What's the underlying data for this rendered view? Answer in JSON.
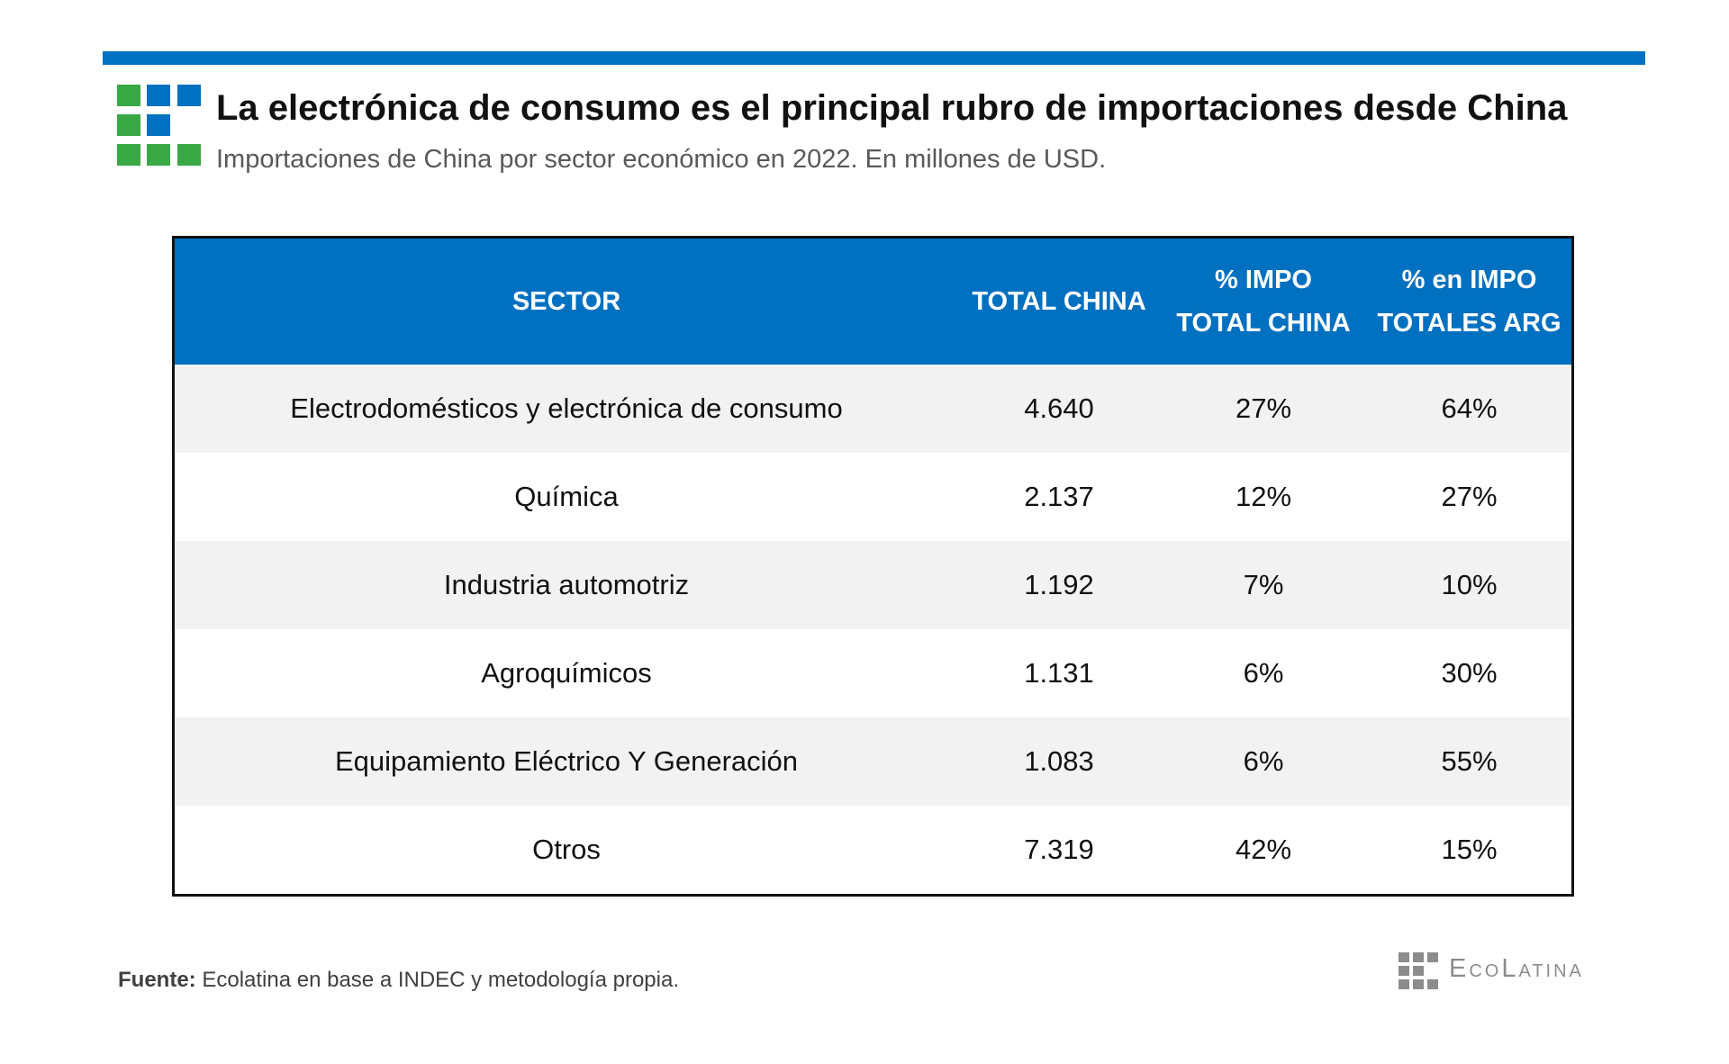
{
  "header": {
    "title": "La electrónica de consumo es el principal rubro de importaciones desde China",
    "subtitle": "Importaciones de China por sector económico en 2022. En millones de USD."
  },
  "colors": {
    "accent_blue": "#0070c0",
    "logo_green": "#3aa845",
    "logo_blue": "#0070c0",
    "row_alt": "#f2f2f2",
    "text": "#111111",
    "muted": "#595959"
  },
  "chart_data": {
    "type": "table",
    "title": "La electrónica de consumo es el principal rubro de importaciones desde China",
    "subtitle": "Importaciones de China por sector económico en 2022. En millones de USD.",
    "columns": [
      {
        "lines": [
          "SECTOR"
        ]
      },
      {
        "lines": [
          "TOTAL CHINA"
        ]
      },
      {
        "lines": [
          "% IMPO",
          "TOTAL CHINA"
        ]
      },
      {
        "lines": [
          "% en IMPO",
          "TOTALES ARG"
        ]
      }
    ],
    "rows": [
      [
        "Electrodomésticos y electrónica de consumo",
        "4.640",
        "27%",
        "64%"
      ],
      [
        "Química",
        "2.137",
        "12%",
        "27%"
      ],
      [
        "Industria automotriz",
        "1.192",
        "7%",
        "10%"
      ],
      [
        "Agroquímicos",
        "1.131",
        "6%",
        "30%"
      ],
      [
        "Equipamiento Eléctrico Y Generación",
        "1.083",
        "6%",
        "55%"
      ],
      [
        "Otros",
        "7.319",
        "42%",
        "15%"
      ]
    ]
  },
  "footer": {
    "source_label": "Fuente:",
    "source_text": " Ecolatina en base a INDEC y metodología propia.",
    "brand_name": "EcoLatina"
  }
}
